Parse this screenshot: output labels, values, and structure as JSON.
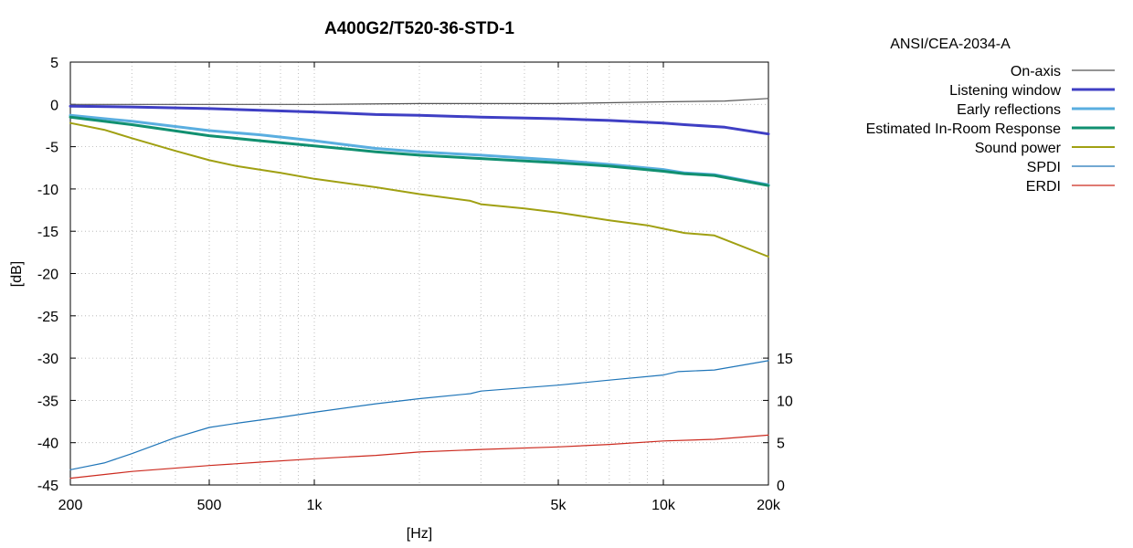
{
  "chart_data": {
    "type": "line",
    "title": "A400G2/T520-36-STD-1",
    "standard_label": "ANSI/CEA-2034-A",
    "xlabel": "[Hz]",
    "ylabel": "[dB]",
    "x_scale": "log",
    "xlim": [
      200,
      20000
    ],
    "ylim": [
      -45,
      5
    ],
    "y2lim": [
      0,
      45
    ],
    "grid": true,
    "legend_position": "top-right, outside plot",
    "x_ticks": [
      {
        "value": 200,
        "label": "200"
      },
      {
        "value": 500,
        "label": "500"
      },
      {
        "value": 1000,
        "label": "1k"
      },
      {
        "value": 5000,
        "label": "5k"
      },
      {
        "value": 10000,
        "label": "10k"
      },
      {
        "value": 20000,
        "label": "20k"
      }
    ],
    "y_ticks": [
      {
        "value": 5,
        "label": "5"
      },
      {
        "value": 0,
        "label": "0"
      },
      {
        "value": -5,
        "label": "-5"
      },
      {
        "value": -10,
        "label": "-10"
      },
      {
        "value": -15,
        "label": "-15"
      },
      {
        "value": -20,
        "label": "-20"
      },
      {
        "value": -25,
        "label": "-25"
      },
      {
        "value": -30,
        "label": "-30"
      },
      {
        "value": -35,
        "label": "-35"
      },
      {
        "value": -40,
        "label": "-40"
      },
      {
        "value": -45,
        "label": "-45"
      }
    ],
    "y2_ticks": [
      {
        "value": 15,
        "label": "15"
      },
      {
        "value": 10,
        "label": "10"
      },
      {
        "value": 5,
        "label": "5"
      },
      {
        "value": 0,
        "label": "0"
      }
    ],
    "series": [
      {
        "name": "On-axis",
        "axis": "y",
        "color": "#555555",
        "width": 1.2,
        "x": [
          200,
          500,
          1000,
          2000,
          5000,
          10000,
          15000,
          20000
        ],
        "y": [
          0,
          0,
          0,
          0.1,
          0.1,
          0.3,
          0.4,
          0.7
        ]
      },
      {
        "name": "Listening window",
        "axis": "y",
        "color": "#3f3fc4",
        "width": 3,
        "x": [
          200,
          300,
          500,
          700,
          1000,
          1500,
          2000,
          3000,
          5000,
          7000,
          10000,
          11500,
          15000,
          20000
        ],
        "y": [
          -0.2,
          -0.3,
          -0.5,
          -0.7,
          -0.9,
          -1.2,
          -1.3,
          -1.5,
          -1.7,
          -1.9,
          -2.2,
          -2.4,
          -2.7,
          -3.5
        ]
      },
      {
        "name": "Early reflections",
        "axis": "y",
        "color": "#5aaee0",
        "width": 3,
        "x": [
          200,
          300,
          500,
          700,
          1000,
          1500,
          2000,
          3000,
          5000,
          7000,
          10000,
          11500,
          14000,
          20000
        ],
        "y": [
          -1.3,
          -2.0,
          -3.1,
          -3.6,
          -4.3,
          -5.2,
          -5.6,
          -6.0,
          -6.6,
          -7.1,
          -7.7,
          -8.1,
          -8.3,
          -9.5
        ]
      },
      {
        "name": "Estimated In-Room Response",
        "axis": "y",
        "color": "#119070",
        "width": 3,
        "x": [
          200,
          300,
          500,
          700,
          1000,
          1500,
          2000,
          3000,
          5000,
          7000,
          10000,
          11500,
          14000,
          20000
        ],
        "y": [
          -1.5,
          -2.4,
          -3.7,
          -4.3,
          -4.9,
          -5.6,
          -6.0,
          -6.4,
          -6.9,
          -7.3,
          -7.9,
          -8.2,
          -8.4,
          -9.6
        ]
      },
      {
        "name": "Sound power",
        "axis": "y",
        "color": "#a0a012",
        "width": 2,
        "x": [
          200,
          250,
          300,
          400,
          500,
          600,
          800,
          1000,
          1500,
          2000,
          2800,
          3000,
          4000,
          5000,
          7000,
          9000,
          10000,
          11500,
          14000,
          20000
        ],
        "y": [
          -2.2,
          -3.0,
          -4.0,
          -5.5,
          -6.6,
          -7.3,
          -8.1,
          -8.8,
          -9.8,
          -10.6,
          -11.4,
          -11.8,
          -12.3,
          -12.8,
          -13.7,
          -14.3,
          -14.7,
          -15.2,
          -15.5,
          -18.0
        ]
      },
      {
        "name": "SPDI",
        "axis": "y2",
        "color": "#1f75b8",
        "width": 1.2,
        "x": [
          200,
          250,
          300,
          400,
          500,
          600,
          800,
          1000,
          1500,
          2000,
          2800,
          3000,
          5000,
          7000,
          10000,
          11000,
          14000,
          20000
        ],
        "y": [
          1.8,
          2.6,
          3.7,
          5.6,
          6.8,
          7.3,
          8.0,
          8.6,
          9.6,
          10.2,
          10.8,
          11.1,
          11.8,
          12.4,
          13.0,
          13.4,
          13.6,
          14.7
        ]
      },
      {
        "name": "ERDI",
        "axis": "y2",
        "color": "#cc2a1f",
        "width": 1.2,
        "x": [
          200,
          300,
          500,
          700,
          1000,
          1500,
          2000,
          3000,
          5000,
          7000,
          10000,
          14000,
          20000
        ],
        "y": [
          0.8,
          1.6,
          2.3,
          2.7,
          3.1,
          3.5,
          3.9,
          4.2,
          4.5,
          4.8,
          5.2,
          5.4,
          5.9
        ]
      }
    ]
  }
}
